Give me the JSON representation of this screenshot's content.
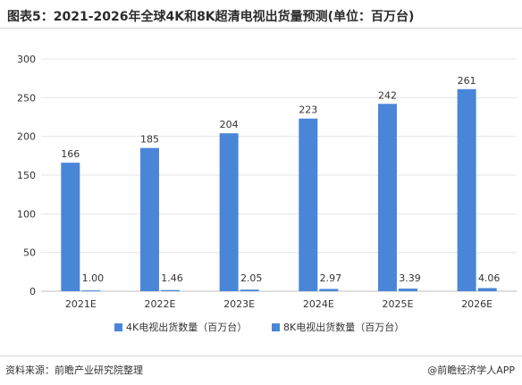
{
  "header": {
    "title": "图表5：2021-2026年全球4K和8K超清电视出货量预测(单位：百万台)"
  },
  "footer": {
    "source": "资料来源：前瞻产业研究院整理",
    "credit": "@前瞻经济学人APP"
  },
  "colors": {
    "bar": "#4a86d8",
    "grid": "#e5e5e5",
    "axis": "#bfbfbf"
  },
  "chart_data": {
    "type": "bar",
    "title": "",
    "xlabel": "",
    "ylabel": "",
    "categories": [
      "2021E",
      "2022E",
      "2023E",
      "2024E",
      "2025E",
      "2026E"
    ],
    "ylim": [
      0,
      300
    ],
    "yticks": [
      0,
      50,
      100,
      150,
      200,
      250,
      300
    ],
    "grid": true,
    "legend_position": "bottom",
    "series": [
      {
        "name": "4K电视出货数量（百万台）",
        "values": [
          166,
          185,
          204,
          223,
          242,
          261
        ],
        "labels": [
          "166",
          "185",
          "204",
          "223",
          "242",
          "261"
        ]
      },
      {
        "name": "8K电视出货数量（百万台）",
        "values": [
          1.0,
          1.46,
          2.05,
          2.97,
          3.39,
          4.06
        ],
        "labels": [
          "1.00",
          "1.46",
          "2.05",
          "2.97",
          "3.39",
          "4.06"
        ]
      }
    ]
  }
}
